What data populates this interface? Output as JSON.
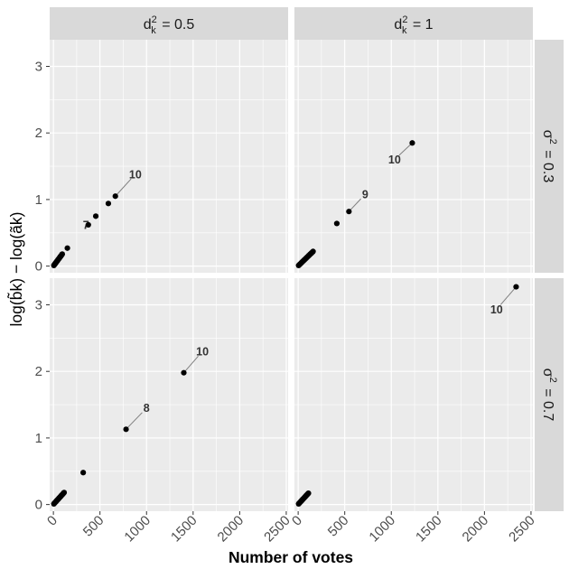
{
  "chart_data": {
    "type": "scatter",
    "xlabel": "Number of votes",
    "ylabel": "log(b̃k) − log(ãk)",
    "xlim": [
      -40,
      2520
    ],
    "ylim": [
      -0.1,
      3.4
    ],
    "x_ticks": [
      0,
      500,
      1000,
      1500,
      2000,
      2500
    ],
    "x_tick_labels": [
      "0",
      "500",
      "1000",
      "1500",
      "2000",
      "2500"
    ],
    "y_ticks": [
      0,
      1,
      2,
      3
    ],
    "y_tick_labels": [
      "0",
      "1",
      "2",
      "3"
    ],
    "grid": true,
    "facet_cols": [
      {
        "var": "d",
        "sup": "2",
        "sub": "k",
        "value": "= 0.5"
      },
      {
        "var": "d",
        "sup": "2",
        "sub": "k",
        "value": "= 1"
      }
    ],
    "facet_rows": [
      {
        "var": "σ",
        "sup": "2",
        "value": "= 0.3"
      },
      {
        "var": "σ",
        "sup": "2",
        "value": "= 0.7"
      }
    ],
    "panels": [
      {
        "row": 0,
        "col": 0,
        "cluster": {
          "x0": 5,
          "y0": 0.01,
          "x1": 95,
          "y1": 0.18
        },
        "points": [
          [
            150,
            0.27
          ],
          [
            375,
            0.62
          ],
          [
            455,
            0.75
          ],
          [
            590,
            0.94
          ],
          [
            665,
            1.05
          ]
        ],
        "labels": [
          {
            "text": "10",
            "x": 665,
            "y": 1.05,
            "tx": 880,
            "ty": 1.38
          },
          {
            "text": "7",
            "x": 375,
            "y": 0.62,
            "tx": 350,
            "ty": 0.62
          }
        ]
      },
      {
        "row": 0,
        "col": 1,
        "cluster": {
          "x0": 5,
          "y0": 0.01,
          "x1": 160,
          "y1": 0.22
        },
        "points": [
          [
            415,
            0.64
          ],
          [
            545,
            0.82
          ],
          [
            1225,
            1.85
          ]
        ],
        "labels": [
          {
            "text": "9",
            "x": 545,
            "y": 0.82,
            "tx": 720,
            "ty": 1.08
          },
          {
            "text": "10",
            "x": 1225,
            "y": 1.85,
            "tx": 1035,
            "ty": 1.6
          }
        ]
      },
      {
        "row": 1,
        "col": 0,
        "cluster": {
          "x0": 5,
          "y0": 0.01,
          "x1": 115,
          "y1": 0.18
        },
        "points": [
          [
            320,
            0.48
          ],
          [
            780,
            1.13
          ],
          [
            1400,
            1.98
          ]
        ],
        "labels": [
          {
            "text": "8",
            "x": 780,
            "y": 1.13,
            "tx": 1000,
            "ty": 1.45
          },
          {
            "text": "10",
            "x": 1400,
            "y": 1.98,
            "tx": 1600,
            "ty": 2.3
          }
        ]
      },
      {
        "row": 1,
        "col": 1,
        "cluster": {
          "x0": 5,
          "y0": 0.01,
          "x1": 110,
          "y1": 0.17
        },
        "points": [
          [
            2340,
            3.27
          ]
        ],
        "labels": [
          {
            "text": "10",
            "x": 2340,
            "y": 3.27,
            "tx": 2130,
            "ty": 2.93
          }
        ]
      }
    ]
  }
}
